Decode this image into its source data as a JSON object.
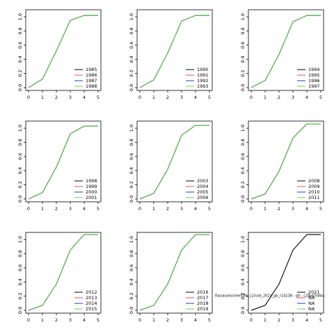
{
  "chart_data": [
    {
      "type": "line",
      "x": [
        0,
        1,
        2,
        3,
        4,
        5
      ],
      "xlim": [
        -0.2,
        5.2
      ],
      "xticks": [
        0,
        1,
        2,
        3,
        4,
        5
      ],
      "ylim": [
        -0.04,
        1.1
      ],
      "yticks": [
        {
          "value": 0,
          "label": "0.0"
        },
        0.2,
        0.4,
        0.6,
        0.8,
        {
          "value": 1,
          "label": "1.0"
        }
      ],
      "legend": "bottomright",
      "series": [
        {
          "name": "1985",
          "color": "#000000",
          "values": [
            0,
            0.12,
            0.52,
            0.95,
            1.02,
            1.02
          ]
        },
        {
          "name": "1986",
          "color": "#df536b",
          "values": [
            0,
            0.12,
            0.52,
            0.95,
            1.02,
            1.02
          ]
        },
        {
          "name": "1987",
          "color": "#2e3ab0",
          "values": [
            0,
            0.12,
            0.52,
            0.95,
            1.02,
            1.02
          ]
        },
        {
          "name": "1988",
          "color": "#61d04f",
          "values": [
            0,
            0.12,
            0.52,
            0.95,
            1.02,
            1.02
          ]
        }
      ]
    },
    {
      "type": "line",
      "x": [
        0,
        1,
        2,
        3,
        4,
        5
      ],
      "xlim": [
        -0.2,
        5.2
      ],
      "xticks": [
        0,
        1,
        2,
        3,
        4,
        5
      ],
      "ylim": [
        -0.04,
        1.1
      ],
      "yticks": [
        {
          "value": 0,
          "label": "0.0"
        },
        0.2,
        0.4,
        0.6,
        0.8,
        {
          "value": 1,
          "label": "1.0"
        }
      ],
      "legend": "bottomright",
      "series": [
        {
          "name": "1990",
          "color": "#000000",
          "values": [
            0,
            0.11,
            0.49,
            0.94,
            1.02,
            1.02
          ]
        },
        {
          "name": "1991",
          "color": "#df536b",
          "values": [
            0,
            0.11,
            0.49,
            0.94,
            1.02,
            1.02
          ]
        },
        {
          "name": "1992",
          "color": "#2e3ab0",
          "values": [
            0,
            0.11,
            0.49,
            0.94,
            1.02,
            1.02
          ]
        },
        {
          "name": "1993",
          "color": "#61d04f",
          "values": [
            0,
            0.11,
            0.49,
            0.94,
            1.02,
            1.02
          ]
        }
      ]
    },
    {
      "type": "line",
      "x": [
        0,
        1,
        2,
        3,
        4,
        5
      ],
      "xlim": [
        -0.2,
        5.2
      ],
      "xticks": [
        0,
        1,
        2,
        3,
        4,
        5
      ],
      "ylim": [
        -0.04,
        1.1
      ],
      "yticks": [
        {
          "value": 0,
          "label": "0.0"
        },
        0.2,
        0.4,
        0.6,
        0.8,
        {
          "value": 1,
          "label": "1.0"
        }
      ],
      "legend": "bottomright",
      "series": [
        {
          "name": "1994",
          "color": "#000000",
          "values": [
            0,
            0.1,
            0.47,
            0.93,
            1.02,
            1.02
          ]
        },
        {
          "name": "1995",
          "color": "#df536b",
          "values": [
            0,
            0.1,
            0.47,
            0.93,
            1.02,
            1.02
          ]
        },
        {
          "name": "1996",
          "color": "#2e3ab0",
          "values": [
            0,
            0.1,
            0.47,
            0.93,
            1.02,
            1.02
          ]
        },
        {
          "name": "1997",
          "color": "#61d04f",
          "values": [
            0,
            0.1,
            0.47,
            0.93,
            1.02,
            1.02
          ]
        }
      ]
    },
    {
      "type": "line",
      "x": [
        0,
        1,
        2,
        3,
        4,
        5
      ],
      "xlim": [
        -0.2,
        5.2
      ],
      "xticks": [
        0,
        1,
        2,
        3,
        4,
        5
      ],
      "ylim": [
        -0.04,
        1.1
      ],
      "yticks": [
        {
          "value": 0,
          "label": "0.0"
        },
        0.2,
        0.4,
        0.6,
        0.8,
        {
          "value": 1,
          "label": "1.0"
        }
      ],
      "legend": "bottomright",
      "series": [
        {
          "name": "1998",
          "color": "#000000",
          "values": [
            0,
            0.09,
            0.45,
            0.92,
            1.03,
            1.03
          ]
        },
        {
          "name": "1999",
          "color": "#df536b",
          "values": [
            0,
            0.09,
            0.45,
            0.92,
            1.03,
            1.03
          ]
        },
        {
          "name": "2000",
          "color": "#2e3ab0",
          "values": [
            0,
            0.09,
            0.45,
            0.92,
            1.03,
            1.03
          ]
        },
        {
          "name": "2001",
          "color": "#61d04f",
          "values": [
            0,
            0.09,
            0.45,
            0.92,
            1.03,
            1.03
          ]
        }
      ]
    },
    {
      "type": "line",
      "x": [
        0,
        1,
        2,
        3,
        4,
        5
      ],
      "xlim": [
        -0.2,
        5.2
      ],
      "xticks": [
        0,
        1,
        2,
        3,
        4,
        5
      ],
      "ylim": [
        -0.04,
        1.1
      ],
      "yticks": [
        {
          "value": 0,
          "label": "0.0"
        },
        0.2,
        0.4,
        0.6,
        0.8,
        {
          "value": 1,
          "label": "1.0"
        }
      ],
      "legend": "bottomright",
      "series": [
        {
          "name": "2003",
          "color": "#000000",
          "values": [
            0,
            0.08,
            0.42,
            0.9,
            1.04,
            1.04
          ]
        },
        {
          "name": "2004",
          "color": "#df536b",
          "values": [
            0,
            0.08,
            0.42,
            0.9,
            1.04,
            1.04
          ]
        },
        {
          "name": "2005",
          "color": "#2e3ab0",
          "values": [
            0,
            0.08,
            0.42,
            0.9,
            1.04,
            1.04
          ]
        },
        {
          "name": "2006",
          "color": "#61d04f",
          "values": [
            0,
            0.08,
            0.42,
            0.9,
            1.04,
            1.04
          ]
        }
      ]
    },
    {
      "type": "line",
      "x": [
        0,
        1,
        2,
        3,
        4,
        5
      ],
      "xlim": [
        -0.2,
        5.2
      ],
      "xticks": [
        0,
        1,
        2,
        3,
        4,
        5
      ],
      "ylim": [
        -0.04,
        1.1
      ],
      "yticks": [
        {
          "value": 0,
          "label": "0.0"
        },
        0.2,
        0.4,
        0.6,
        0.8,
        {
          "value": 1,
          "label": "1.0"
        }
      ],
      "legend": "bottomright",
      "series": [
        {
          "name": "2008",
          "color": "#000000",
          "values": [
            0,
            0.07,
            0.39,
            0.86,
            1.06,
            1.06
          ]
        },
        {
          "name": "2009",
          "color": "#df536b",
          "values": [
            0,
            0.07,
            0.39,
            0.86,
            1.06,
            1.06
          ]
        },
        {
          "name": "2010",
          "color": "#2e3ab0",
          "values": [
            0,
            0.07,
            0.39,
            0.86,
            1.06,
            1.06
          ]
        },
        {
          "name": "2011",
          "color": "#61d04f",
          "values": [
            0,
            0.07,
            0.39,
            0.86,
            1.06,
            1.06
          ]
        }
      ]
    },
    {
      "type": "line",
      "x": [
        0,
        1,
        2,
        3,
        4,
        5
      ],
      "xlim": [
        -0.2,
        5.2
      ],
      "xticks": [
        0,
        1,
        2,
        3,
        4,
        5
      ],
      "ylim": [
        -0.04,
        1.1
      ],
      "yticks": [
        {
          "value": 0,
          "label": "0.0"
        },
        0.2,
        0.4,
        0.6,
        0.8,
        {
          "value": 1,
          "label": "1.0"
        }
      ],
      "legend": "bottomright",
      "series": [
        {
          "name": "2012",
          "color": "#000000",
          "values": [
            0,
            0.07,
            0.37,
            0.85,
            1.07,
            1.07
          ]
        },
        {
          "name": "2013",
          "color": "#df536b",
          "values": [
            0,
            0.07,
            0.37,
            0.85,
            1.07,
            1.07
          ]
        },
        {
          "name": "2014",
          "color": "#2e3ab0",
          "values": [
            0,
            0.07,
            0.37,
            0.85,
            1.07,
            1.07
          ]
        },
        {
          "name": "2015",
          "color": "#61d04f",
          "values": [
            0,
            0.07,
            0.37,
            0.85,
            1.07,
            1.07
          ]
        }
      ]
    },
    {
      "type": "line",
      "x": [
        0,
        1,
        2,
        3,
        4,
        5
      ],
      "xlim": [
        -0.2,
        5.2
      ],
      "xticks": [
        0,
        1,
        2,
        3,
        4,
        5
      ],
      "ylim": [
        -0.04,
        1.1
      ],
      "yticks": [
        {
          "value": 0,
          "label": "0.0"
        },
        0.2,
        0.4,
        0.6,
        0.8,
        {
          "value": 1,
          "label": "1.0"
        }
      ],
      "legend": "bottomright",
      "series": [
        {
          "name": "2016",
          "color": "#000000",
          "values": [
            0,
            0.07,
            0.37,
            0.85,
            1.07,
            1.07
          ]
        },
        {
          "name": "2017",
          "color": "#df536b",
          "values": [
            0,
            0.07,
            0.37,
            0.85,
            1.07,
            1.07
          ]
        },
        {
          "name": "2018",
          "color": "#2e3ab0",
          "values": [
            0,
            0.07,
            0.37,
            0.85,
            1.07,
            1.07
          ]
        },
        {
          "name": "2019",
          "color": "#61d04f",
          "values": [
            0,
            0.07,
            0.37,
            0.85,
            1.07,
            1.07
          ]
        }
      ]
    },
    {
      "type": "line",
      "x": [
        0,
        1,
        2,
        3,
        4,
        5
      ],
      "xlim": [
        -0.2,
        5.2
      ],
      "xticks": [
        0,
        1,
        2,
        3,
        4,
        5
      ],
      "ylim": [
        -0.04,
        1.1
      ],
      "yticks": [
        {
          "value": 0,
          "label": "0.0"
        },
        0.2,
        0.4,
        0.6,
        0.8,
        {
          "value": 1,
          "label": "1.0"
        }
      ],
      "legend": "bottomright",
      "annotation": "lfas/assessment/lfs_c2/cod_2021_gb_r14238 : git : c2fbdcfd4ac",
      "series": [
        {
          "name": "2021",
          "color": "#000000",
          "values": [
            0,
            0.07,
            0.37,
            0.85,
            1.07,
            1.07
          ]
        },
        {
          "name": "NA",
          "color": "#df536b",
          "values": [
            null,
            null,
            null,
            null,
            null,
            null
          ]
        },
        {
          "name": "NA",
          "color": "#2e3ab0",
          "values": [
            null,
            null,
            null,
            null,
            null,
            null
          ]
        },
        {
          "name": "NA",
          "color": "#61d04f",
          "values": [
            null,
            null,
            null,
            null,
            null,
            null
          ]
        }
      ]
    }
  ]
}
